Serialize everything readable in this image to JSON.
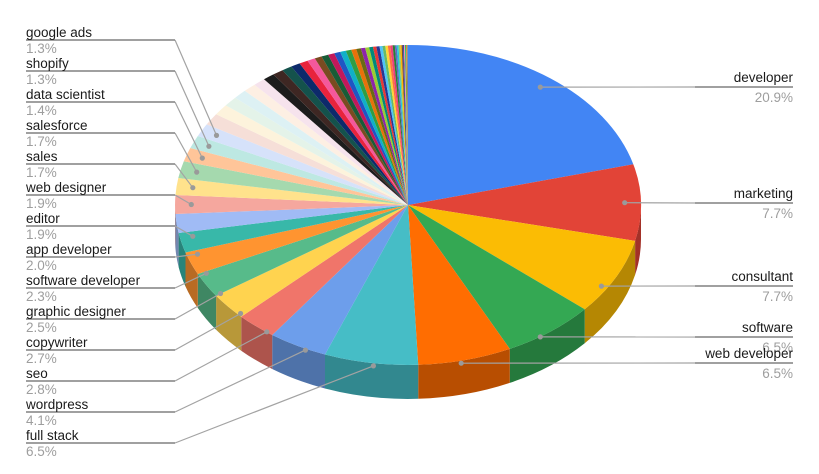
{
  "chart_data": {
    "type": "pie",
    "style": "3d",
    "title": "",
    "legend_position": "labeled",
    "direction": "clockwise",
    "start_angle_deg": 0,
    "segments": [
      {
        "label": "developer",
        "value": 20.9,
        "pct": "20.9%",
        "color": "#4285F4",
        "side": "right"
      },
      {
        "label": "marketing",
        "value": 7.7,
        "pct": "7.7%",
        "color": "#E24437",
        "side": "right"
      },
      {
        "label": "consultant",
        "value": 7.7,
        "pct": "7.7%",
        "color": "#FBBC04",
        "side": "right"
      },
      {
        "label": "software",
        "value": 6.5,
        "pct": "6.5%",
        "color": "#34A853",
        "side": "right"
      },
      {
        "label": "web developer",
        "value": 6.5,
        "pct": "6.5%",
        "color": "#FF6D01",
        "side": "right"
      },
      {
        "label": "full stack",
        "value": 6.5,
        "pct": "6.5%",
        "color": "#46BDC6",
        "side": "left"
      },
      {
        "label": "wordpress",
        "value": 4.1,
        "pct": "4.1%",
        "color": "#6D9EEB",
        "side": "left"
      },
      {
        "label": "seo",
        "value": 2.8,
        "pct": "2.8%",
        "color": "#F0756A",
        "side": "left"
      },
      {
        "label": "copywriter",
        "value": 2.7,
        "pct": "2.7%",
        "color": "#FFD34F",
        "side": "left"
      },
      {
        "label": "graphic designer",
        "value": 2.5,
        "pct": "2.5%",
        "color": "#57BB8A",
        "side": "left"
      },
      {
        "label": "software developer",
        "value": 2.3,
        "pct": "2.3%",
        "color": "#FF9430",
        "side": "left"
      },
      {
        "label": "app developer",
        "value": 2.0,
        "pct": "2.0%",
        "color": "#38B8A9",
        "side": "left"
      },
      {
        "label": "editor",
        "value": 1.9,
        "pct": "1.9%",
        "color": "#A0BBF5",
        "side": "left"
      },
      {
        "label": "web designer",
        "value": 1.9,
        "pct": "1.9%",
        "color": "#F5A79E",
        "side": "left"
      },
      {
        "label": "sales",
        "value": 1.7,
        "pct": "1.7%",
        "color": "#FFE28C",
        "side": "left"
      },
      {
        "label": "salesforce",
        "value": 1.7,
        "pct": "1.7%",
        "color": "#A5D9AE",
        "side": "left"
      },
      {
        "label": "data scientist",
        "value": 1.4,
        "pct": "1.4%",
        "color": "#FFC599",
        "side": "left"
      },
      {
        "label": "shopify",
        "value": 1.3,
        "pct": "1.3%",
        "color": "#BDE8E2",
        "side": "left"
      },
      {
        "label": "google ads",
        "value": 1.3,
        "pct": "1.3%",
        "color": "#D6E2FA",
        "side": "left"
      }
    ],
    "others_unlabeled": {
      "total_pct": 16.6,
      "values": [
        1.2,
        1.1,
        1.0,
        0.95,
        0.9,
        0.85,
        0.8,
        0.75,
        0.7,
        0.65,
        0.6,
        0.55,
        0.5,
        0.48,
        0.45,
        0.42,
        0.4,
        0.38,
        0.35,
        0.32,
        0.3,
        0.28,
        0.26,
        0.24,
        0.22,
        0.2,
        0.19,
        0.18,
        0.17,
        0.16,
        0.15,
        0.13,
        0.12,
        0.11,
        0.1,
        0.09,
        0.08,
        0.07,
        0.06,
        0.05,
        0.04,
        0.03,
        0.02
      ],
      "colors": [
        "#F6DFD8",
        "#FDF3DC",
        "#E4F3E9",
        "#DDF1F4",
        "#FDEFE3",
        "#F6E3ED",
        "#1C1C1C",
        "#3E2723",
        "#14524C",
        "#0D2A6B",
        "#E8233D",
        "#F4589B",
        "#7A4B21",
        "#185C37",
        "#C2185B",
        "#1F56C4",
        "#10B0C8",
        "#2F9E44",
        "#E8710A",
        "#6B6B12",
        "#8E24AA",
        "#9ACD32",
        "#00897B",
        "#E53935",
        "#283593",
        "#4FC3F7",
        "#66BB6A",
        "#FDD835",
        "#FF7043",
        "#EC407A",
        "#2E7D32",
        "#5C6BC0",
        "#26C6DA",
        "#9CCC65",
        "#FFB300",
        "#6D4C41",
        "#3949AB",
        "#F48FB1",
        "#00C853",
        "#FF9100",
        "#AD1457",
        "#039BE5",
        "#7CB342"
      ]
    }
  },
  "colors": {
    "background": "#ffffff",
    "leader_line": "#a3a3a3",
    "label_underline": "#808080",
    "dot": "#9a9a9a",
    "name_text": "#1a1a1a",
    "pct_text": "#9e9e9e"
  }
}
